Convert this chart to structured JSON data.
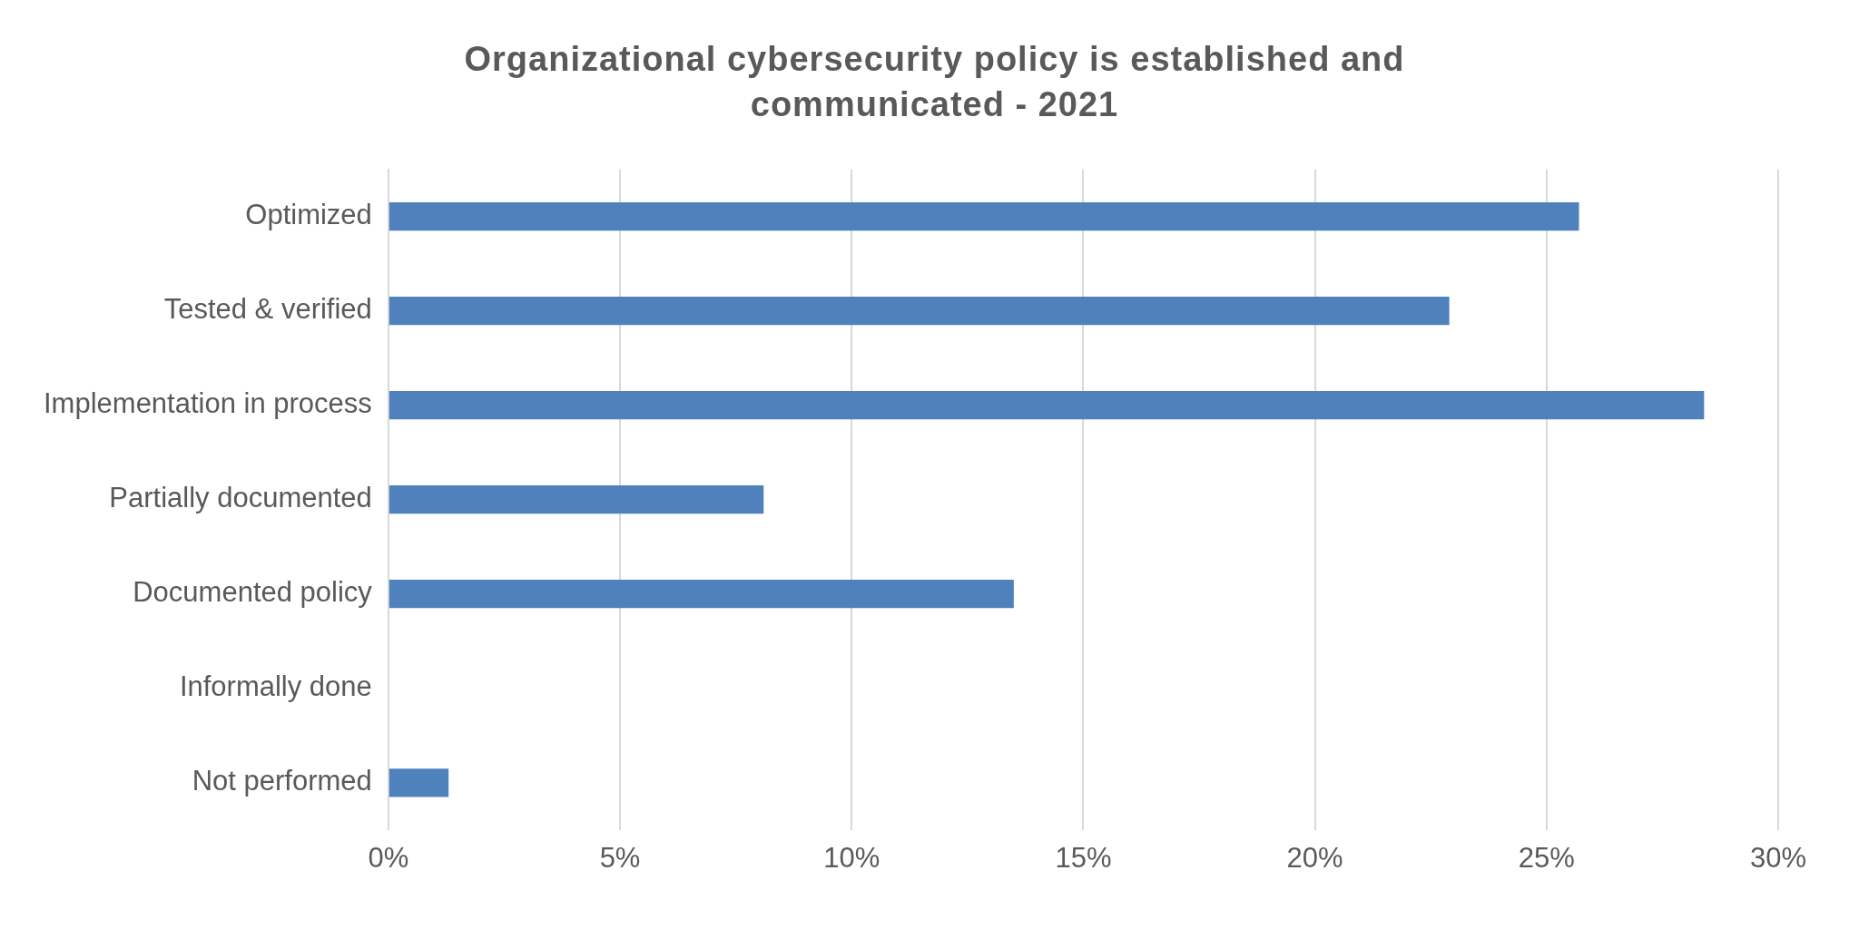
{
  "chart_data": {
    "type": "bar",
    "orientation": "horizontal",
    "title": "Organizational cybersecurity policy is established and communicated - 2021",
    "categories": [
      "Optimized",
      "Tested & verified",
      "Implementation in process",
      "Partially documented",
      "Documented policy",
      "Informally done",
      "Not performed"
    ],
    "values": [
      25.7,
      22.9,
      28.4,
      8.1,
      13.5,
      0,
      1.3
    ],
    "color": "#4f81bd",
    "xlim": [
      0,
      30
    ],
    "xticks": [
      {
        "value": 0,
        "label": "0%"
      },
      {
        "value": 5,
        "label": "5%"
      },
      {
        "value": 10,
        "label": "10%"
      },
      {
        "value": 15,
        "label": "15%"
      },
      {
        "value": 20,
        "label": "20%"
      },
      {
        "value": 25,
        "label": "25%"
      },
      {
        "value": 30,
        "label": "30%"
      }
    ],
    "grid": "x",
    "legend": false
  }
}
